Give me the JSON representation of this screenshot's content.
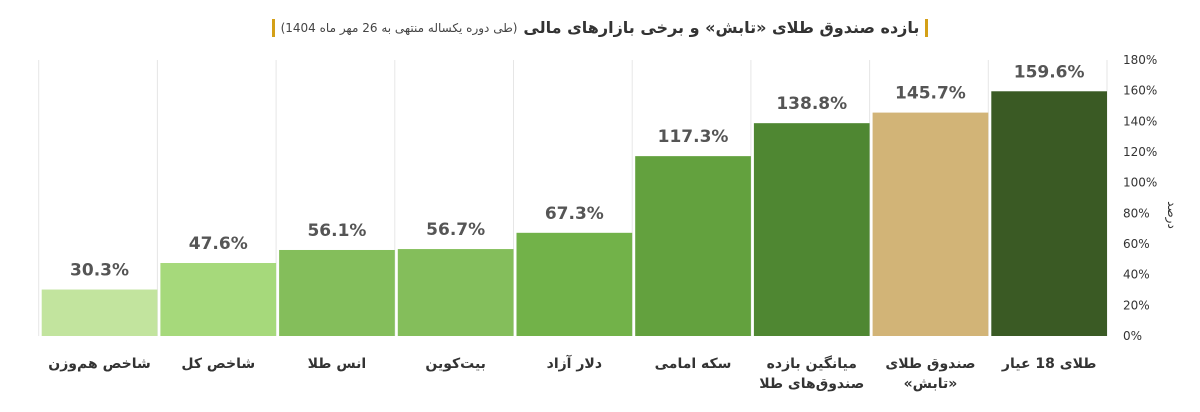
{
  "chart_data": {
    "type": "bar",
    "title": "بازده صندوق طلای «تابش» و برخی بازارهای مالی",
    "subtitle": "(طی دوره یکساله منتهی به 26 مهر ماه 1404)",
    "ylabel": "درصد",
    "xlabel": "",
    "ylim": [
      0,
      180
    ],
    "yticks": [
      "0%",
      "20%",
      "40%",
      "60%",
      "80%",
      "100%",
      "120%",
      "140%",
      "160%",
      "180%"
    ],
    "grid": "vertical separators",
    "axis_position": "right",
    "categories": [
      [
        "طلای 18 عیار"
      ],
      [
        "صندوق طلای",
        "«تابش»"
      ],
      [
        "میانگین بازده",
        "صندوق‌های طلا"
      ],
      [
        "سکه امامی"
      ],
      [
        "دلار آزاد"
      ],
      [
        "بیت‌کوین"
      ],
      [
        "انس طلا"
      ],
      [
        "شاخص کل"
      ],
      [
        "شاخص هم‌وزن"
      ]
    ],
    "values": [
      159.6,
      145.7,
      138.8,
      117.3,
      67.3,
      56.7,
      56.1,
      47.6,
      30.3
    ],
    "value_labels": [
      "159.6%",
      "145.7%",
      "138.8%",
      "117.3%",
      "67.3%",
      "56.7%",
      "56.1%",
      "47.6%",
      "30.3%"
    ],
    "colors": [
      "#3a5a24",
      "#d2b477",
      "#4f8732",
      "#63a13e",
      "#72b249",
      "#84be5b",
      "#84be5b",
      "#a6d97b",
      "#c2e49e"
    ]
  }
}
